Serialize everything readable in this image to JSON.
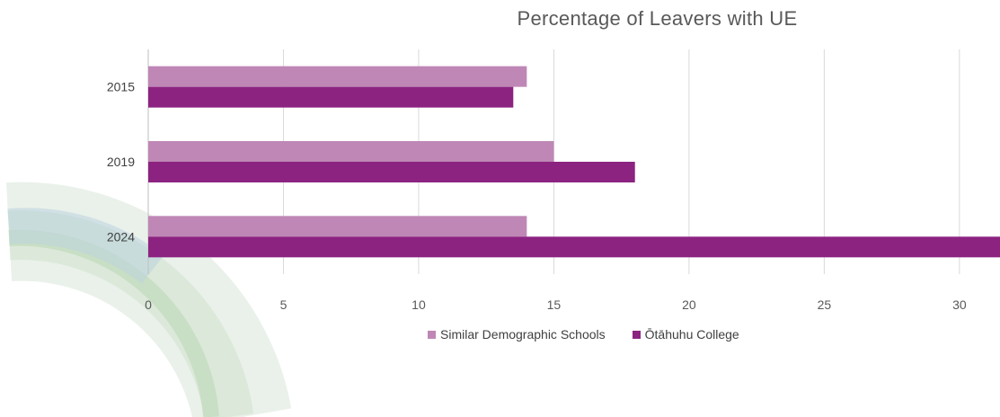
{
  "chart_data": {
    "type": "bar",
    "orientation": "horizontal",
    "title": "Percentage of Leavers with UE",
    "categories": [
      "2015",
      "2019",
      "2024"
    ],
    "series": [
      {
        "name": "Similar Demographic Schools",
        "values": [
          14,
          15,
          14
        ],
        "color": "#BF87B6"
      },
      {
        "name": "Ōtāhuhu College",
        "values": [
          13.5,
          18,
          31.5
        ],
        "color": "#8C2381"
      }
    ],
    "x_ticks": [
      0,
      5,
      10,
      15,
      20,
      25,
      30
    ],
    "xlim": [
      0,
      31.5
    ],
    "grid": true,
    "legend_position": "bottom"
  }
}
